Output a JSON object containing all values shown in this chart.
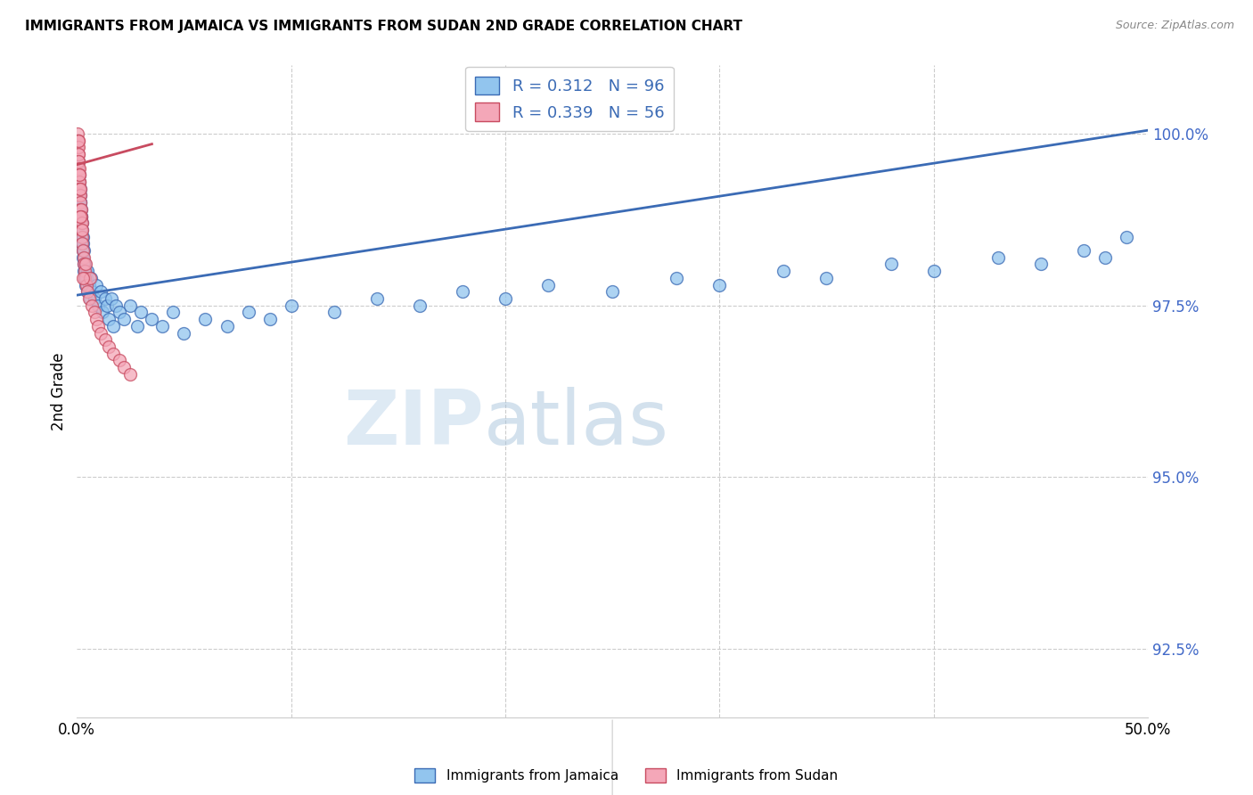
{
  "title": "IMMIGRANTS FROM JAMAICA VS IMMIGRANTS FROM SUDAN 2ND GRADE CORRELATION CHART",
  "source": "Source: ZipAtlas.com",
  "ylabel": "2nd Grade",
  "y_ticks": [
    92.5,
    95.0,
    97.5,
    100.0
  ],
  "y_tick_labels": [
    "92.5%",
    "95.0%",
    "97.5%",
    "100.0%"
  ],
  "xlim": [
    0.0,
    50.0
  ],
  "ylim": [
    91.5,
    101.0
  ],
  "legend_blue_r": "0.312",
  "legend_blue_n": "96",
  "legend_pink_r": "0.339",
  "legend_pink_n": "56",
  "legend_label_blue": "Immigrants from Jamaica",
  "legend_label_pink": "Immigrants from Sudan",
  "color_blue": "#92C5EE",
  "color_pink": "#F4A7B8",
  "line_color_blue": "#3B6BB5",
  "line_color_pink": "#C84B60",
  "watermark_zip": "ZIP",
  "watermark_atlas": "atlas",
  "blue_regression_x0": 0.0,
  "blue_regression_y0": 97.65,
  "blue_regression_x1": 50.0,
  "blue_regression_y1": 100.05,
  "pink_regression_x0": 0.0,
  "pink_regression_y0": 99.55,
  "pink_regression_x1": 3.5,
  "pink_regression_y1": 99.85,
  "blue_x": [
    0.05,
    0.06,
    0.07,
    0.08,
    0.08,
    0.09,
    0.1,
    0.1,
    0.11,
    0.12,
    0.12,
    0.13,
    0.13,
    0.14,
    0.14,
    0.15,
    0.15,
    0.16,
    0.17,
    0.17,
    0.18,
    0.18,
    0.19,
    0.2,
    0.2,
    0.21,
    0.21,
    0.22,
    0.22,
    0.23,
    0.24,
    0.25,
    0.26,
    0.27,
    0.28,
    0.29,
    0.3,
    0.32,
    0.34,
    0.36,
    0.38,
    0.4,
    0.42,
    0.45,
    0.48,
    0.5,
    0.55,
    0.6,
    0.65,
    0.7,
    0.8,
    0.9,
    1.0,
    1.1,
    1.2,
    1.3,
    1.4,
    1.5,
    1.6,
    1.7,
    1.8,
    2.0,
    2.2,
    2.5,
    2.8,
    3.0,
    3.5,
    4.0,
    4.5,
    5.0,
    6.0,
    7.0,
    8.0,
    9.0,
    10.0,
    12.0,
    14.0,
    16.0,
    18.0,
    20.0,
    22.0,
    25.0,
    28.0,
    30.0,
    33.0,
    35.0,
    38.0,
    40.0,
    43.0,
    45.0,
    47.0,
    48.0,
    49.0,
    0.03,
    0.04,
    0.09
  ],
  "blue_y": [
    99.5,
    99.3,
    99.4,
    99.2,
    99.6,
    99.1,
    99.0,
    99.3,
    98.9,
    99.1,
    99.4,
    99.2,
    98.8,
    99.0,
    99.2,
    98.7,
    99.1,
    98.8,
    98.9,
    99.0,
    98.6,
    98.8,
    98.7,
    98.5,
    98.9,
    98.6,
    98.8,
    98.4,
    98.7,
    98.5,
    98.6,
    98.4,
    98.3,
    98.5,
    98.2,
    98.4,
    98.1,
    98.3,
    98.0,
    97.9,
    98.1,
    98.0,
    97.8,
    97.9,
    97.7,
    98.0,
    97.8,
    97.6,
    97.9,
    97.7,
    97.6,
    97.8,
    97.5,
    97.7,
    97.4,
    97.6,
    97.5,
    97.3,
    97.6,
    97.2,
    97.5,
    97.4,
    97.3,
    97.5,
    97.2,
    97.4,
    97.3,
    97.2,
    97.4,
    97.1,
    97.3,
    97.2,
    97.4,
    97.3,
    97.5,
    97.4,
    97.6,
    97.5,
    97.7,
    97.6,
    97.8,
    97.7,
    97.9,
    97.8,
    98.0,
    97.9,
    98.1,
    98.0,
    98.2,
    98.1,
    98.3,
    98.2,
    98.5,
    99.5,
    99.3,
    98.9
  ],
  "pink_x": [
    0.03,
    0.04,
    0.05,
    0.06,
    0.06,
    0.07,
    0.07,
    0.08,
    0.08,
    0.09,
    0.09,
    0.1,
    0.1,
    0.11,
    0.11,
    0.12,
    0.12,
    0.13,
    0.13,
    0.14,
    0.15,
    0.15,
    0.16,
    0.17,
    0.18,
    0.19,
    0.2,
    0.21,
    0.22,
    0.23,
    0.24,
    0.25,
    0.27,
    0.3,
    0.32,
    0.35,
    0.38,
    0.4,
    0.45,
    0.5,
    0.55,
    0.6,
    0.7,
    0.8,
    0.9,
    1.0,
    1.1,
    1.3,
    1.5,
    1.7,
    2.0,
    2.2,
    2.5,
    0.06,
    0.16,
    0.28
  ],
  "pink_y": [
    100.0,
    99.9,
    99.8,
    99.7,
    99.9,
    99.6,
    99.8,
    99.5,
    99.7,
    99.4,
    99.6,
    99.3,
    99.5,
    99.2,
    99.4,
    99.1,
    99.3,
    99.2,
    99.4,
    99.1,
    99.0,
    99.2,
    98.9,
    98.8,
    98.7,
    98.9,
    98.6,
    98.8,
    98.5,
    98.7,
    98.6,
    98.4,
    98.3,
    98.2,
    98.1,
    98.0,
    97.9,
    98.1,
    97.8,
    97.7,
    97.6,
    97.9,
    97.5,
    97.4,
    97.3,
    97.2,
    97.1,
    97.0,
    96.9,
    96.8,
    96.7,
    96.6,
    96.5,
    99.9,
    98.8,
    97.9
  ]
}
